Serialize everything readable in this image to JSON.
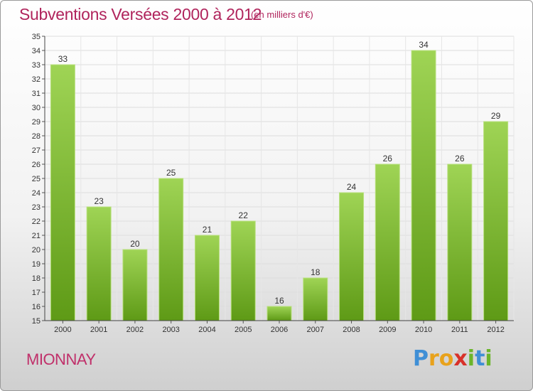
{
  "header": {
    "title": "Subventions Versées 2000 à 2012",
    "unit": "(en milliers d'€)"
  },
  "footer": {
    "commune": "MIONNAY",
    "logo": "Proxiti"
  },
  "colors": {
    "title": "#b0245c",
    "bar_light": "#9fd455",
    "bar_dark": "#5e9a16"
  },
  "chart_data": {
    "type": "bar",
    "title": "Subventions Versées 2000 à 2012",
    "subtitle": "(en milliers d'€)",
    "categories": [
      "2000",
      "2001",
      "2002",
      "2003",
      "2004",
      "2005",
      "2006",
      "2007",
      "2008",
      "2009",
      "2010",
      "2011",
      "2012"
    ],
    "values": [
      33,
      23,
      20,
      25,
      21,
      22,
      16,
      18,
      24,
      26,
      34,
      26,
      29
    ],
    "ylim": [
      15,
      35
    ],
    "ytick_step": 1,
    "grid": true,
    "data_labels": true
  }
}
